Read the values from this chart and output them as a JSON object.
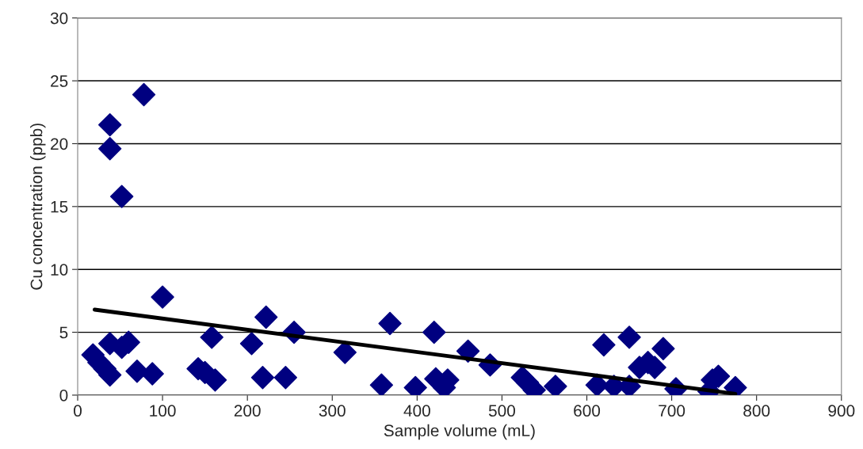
{
  "chart_data": {
    "type": "scatter",
    "xlabel": "Sample volume (mL)",
    "ylabel": "Cu concentration (ppb)",
    "xlim": [
      0,
      900
    ],
    "xticks": [
      0,
      100,
      200,
      300,
      400,
      500,
      600,
      700,
      800,
      900
    ],
    "ylim": [
      0,
      30
    ],
    "yticks": [
      0,
      5,
      10,
      15,
      20,
      25,
      30
    ],
    "grid": "y",
    "legend": false,
    "series": [
      {
        "color": "#000080",
        "marker": "diamond",
        "x": [
          18,
          25,
          32,
          38,
          38,
          38,
          38,
          52,
          52,
          60,
          70,
          78,
          88,
          100,
          142,
          150,
          158,
          162,
          205,
          218,
          222,
          245,
          255,
          315,
          358,
          368,
          398,
          420,
          422,
          432,
          436,
          460,
          486,
          524,
          530,
          538,
          563,
          612,
          620,
          632,
          650,
          650,
          662,
          672,
          680,
          690,
          705,
          744,
          748,
          755,
          775
        ],
        "values": [
          3.2,
          2.6,
          2.1,
          1.6,
          4.1,
          21.5,
          19.6,
          15.8,
          3.8,
          4.2,
          1.9,
          23.9,
          1.7,
          7.8,
          2.1,
          1.8,
          4.6,
          1.2,
          4.1,
          1.4,
          6.2,
          1.4,
          5.0,
          3.4,
          0.8,
          5.7,
          0.6,
          5.0,
          1.3,
          0.6,
          1.2,
          3.5,
          2.4,
          1.4,
          1.0,
          0.4,
          0.7,
          0.8,
          4.0,
          0.7,
          4.6,
          0.7,
          2.2,
          2.6,
          2.2,
          3.7,
          0.5,
          0.3,
          1.2,
          1.5,
          0.6
        ]
      },
      {
        "type": "line",
        "color": "#000000",
        "marker": "none",
        "line_style": "solid",
        "x": [
          20,
          775
        ],
        "values": [
          6.8,
          0.1
        ]
      }
    ]
  }
}
